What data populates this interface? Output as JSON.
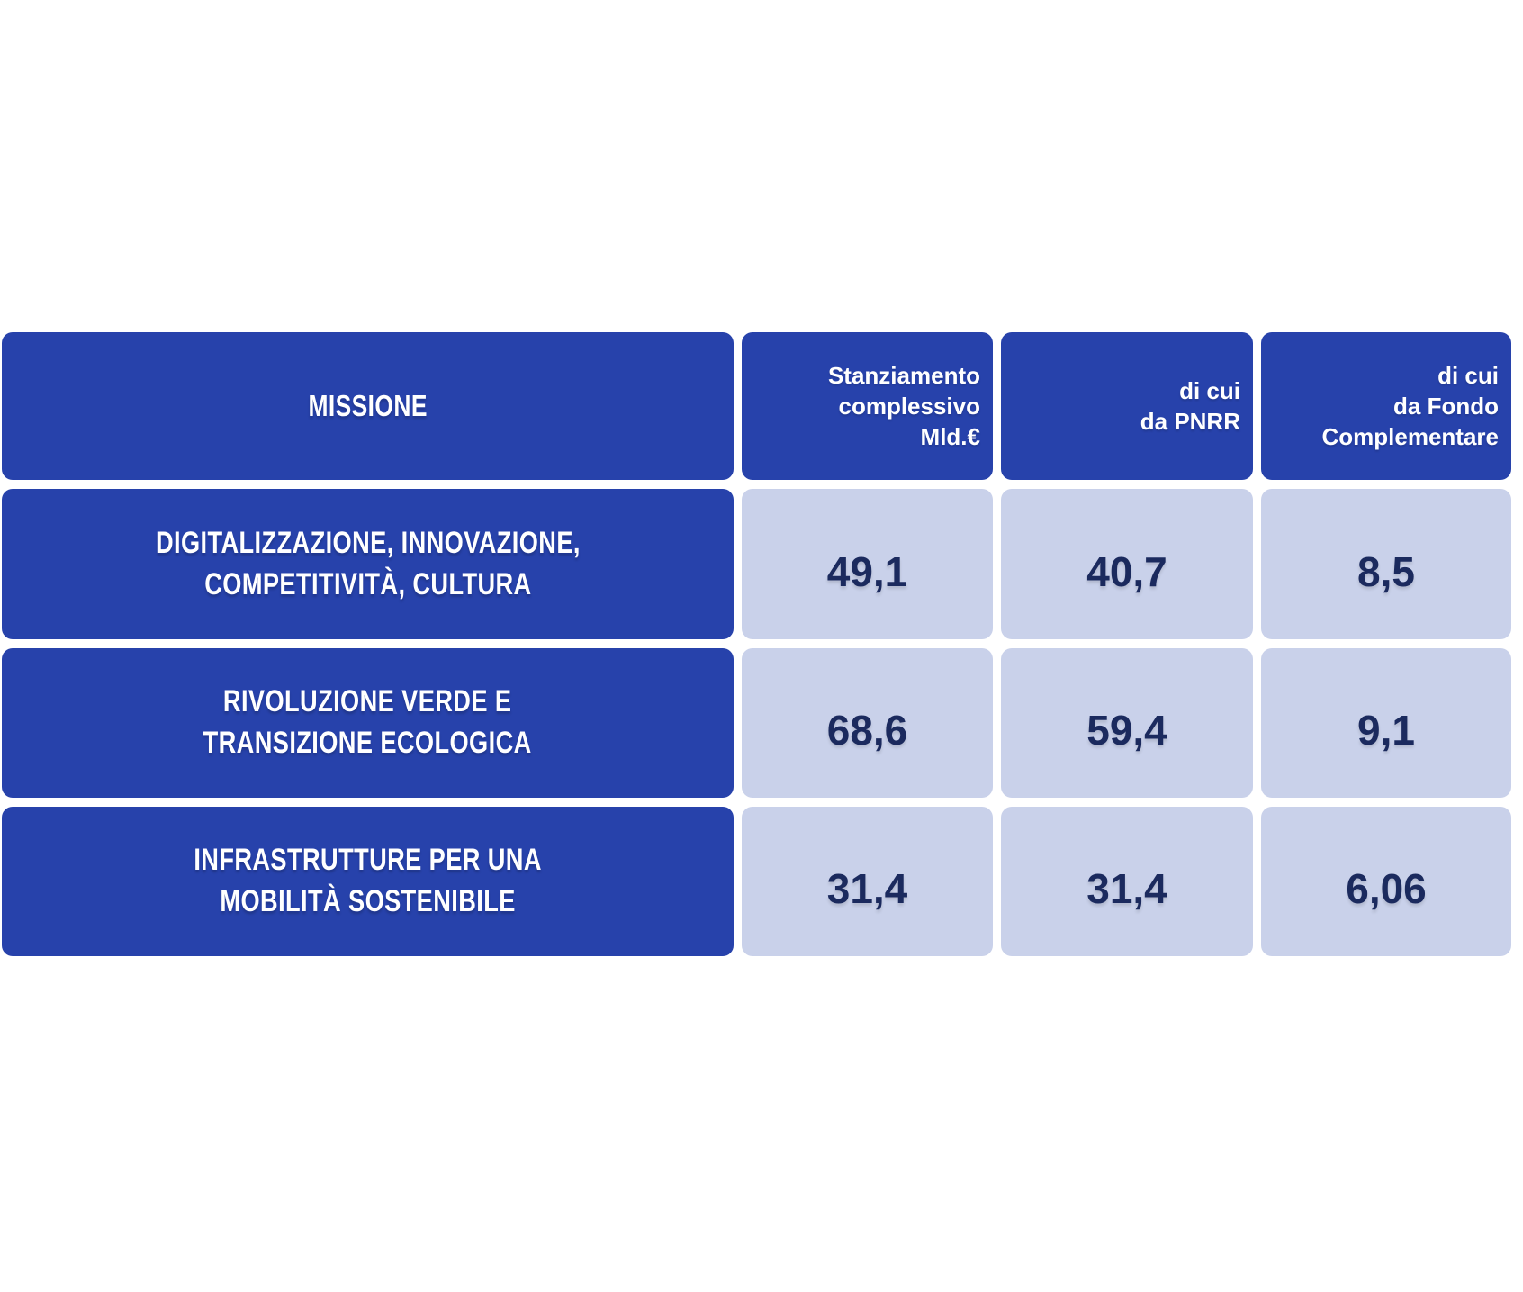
{
  "colors": {
    "header_blue": "#2742ab",
    "cell_lavender": "#c9d1ea",
    "value_navy": "#1b2a5e",
    "header_text_white": "#ffffff",
    "background": "#ffffff"
  },
  "chart_data": {
    "type": "table",
    "title": "",
    "columns": [
      "MISSIONE",
      "Stanziamento complessivo Mld.€",
      "di cui da PNRR",
      "di cui da Fondo Complementare"
    ],
    "rows": [
      {
        "missione": "DIGITALIZZAZIONE, INNOVAZIONE, COMPETITIVITÀ, CULTURA",
        "stanziamento_complessivo_mld": 49.1,
        "di_cui_da_pnrr": 40.7,
        "di_cui_da_fondo_complementare": 8.5
      },
      {
        "missione": "RIVOLUZIONE VERDE E TRANSIZIONE ECOLOGICA",
        "stanziamento_complessivo_mld": 68.6,
        "di_cui_da_pnrr": 59.4,
        "di_cui_da_fondo_complementare": 9.1
      },
      {
        "missione": "INFRASTRUTTURE PER UNA MOBILITÀ SOSTENIBILE",
        "stanziamento_complessivo_mld": 31.4,
        "di_cui_da_pnrr": 31.4,
        "di_cui_da_fondo_complementare": 6.06
      }
    ]
  },
  "table": {
    "header": {
      "missione": "MISSIONE",
      "stanziamento": "Stanziamento\ncomplessivo\nMld.€",
      "pnrr": "di cui\nda PNRR",
      "fondo": "di cui\nda Fondo\nComplementare"
    },
    "rows": [
      {
        "label": "DIGITALIZZAZIONE, INNOVAZIONE,\nCOMPETITIVITÀ, CULTURA",
        "values": [
          "49,1",
          "40,7",
          "8,5"
        ]
      },
      {
        "label": "RIVOLUZIONE VERDE E\nTRANSIZIONE ECOLOGICA",
        "values": [
          "68,6",
          "59,4",
          "9,1"
        ]
      },
      {
        "label": "INFRASTRUTTURE PER UNA\nMOBILITÀ SOSTENIBILE",
        "values": [
          "31,4",
          "31,4",
          "6,06"
        ]
      }
    ]
  }
}
